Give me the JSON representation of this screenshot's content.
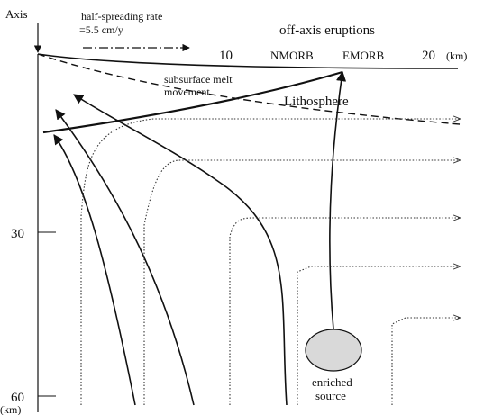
{
  "header": {
    "axis": "Axis",
    "rate_label": [
      "half-spreading rate",
      "=5.5 cm/y"
    ],
    "eruptions": "off-axis eruptions"
  },
  "x_axis": {
    "ticks": [
      "10",
      "20"
    ],
    "unit": "(km)"
  },
  "y_axis": {
    "ticks": [
      "30",
      "60"
    ],
    "unit": "(km)"
  },
  "labels": {
    "nmorb": "NMORB",
    "emorb": "EMORB",
    "melt": [
      "subsurface melt",
      "movement"
    ],
    "lithosphere": "Lithosphere",
    "source": [
      "enriched",
      "source"
    ]
  }
}
